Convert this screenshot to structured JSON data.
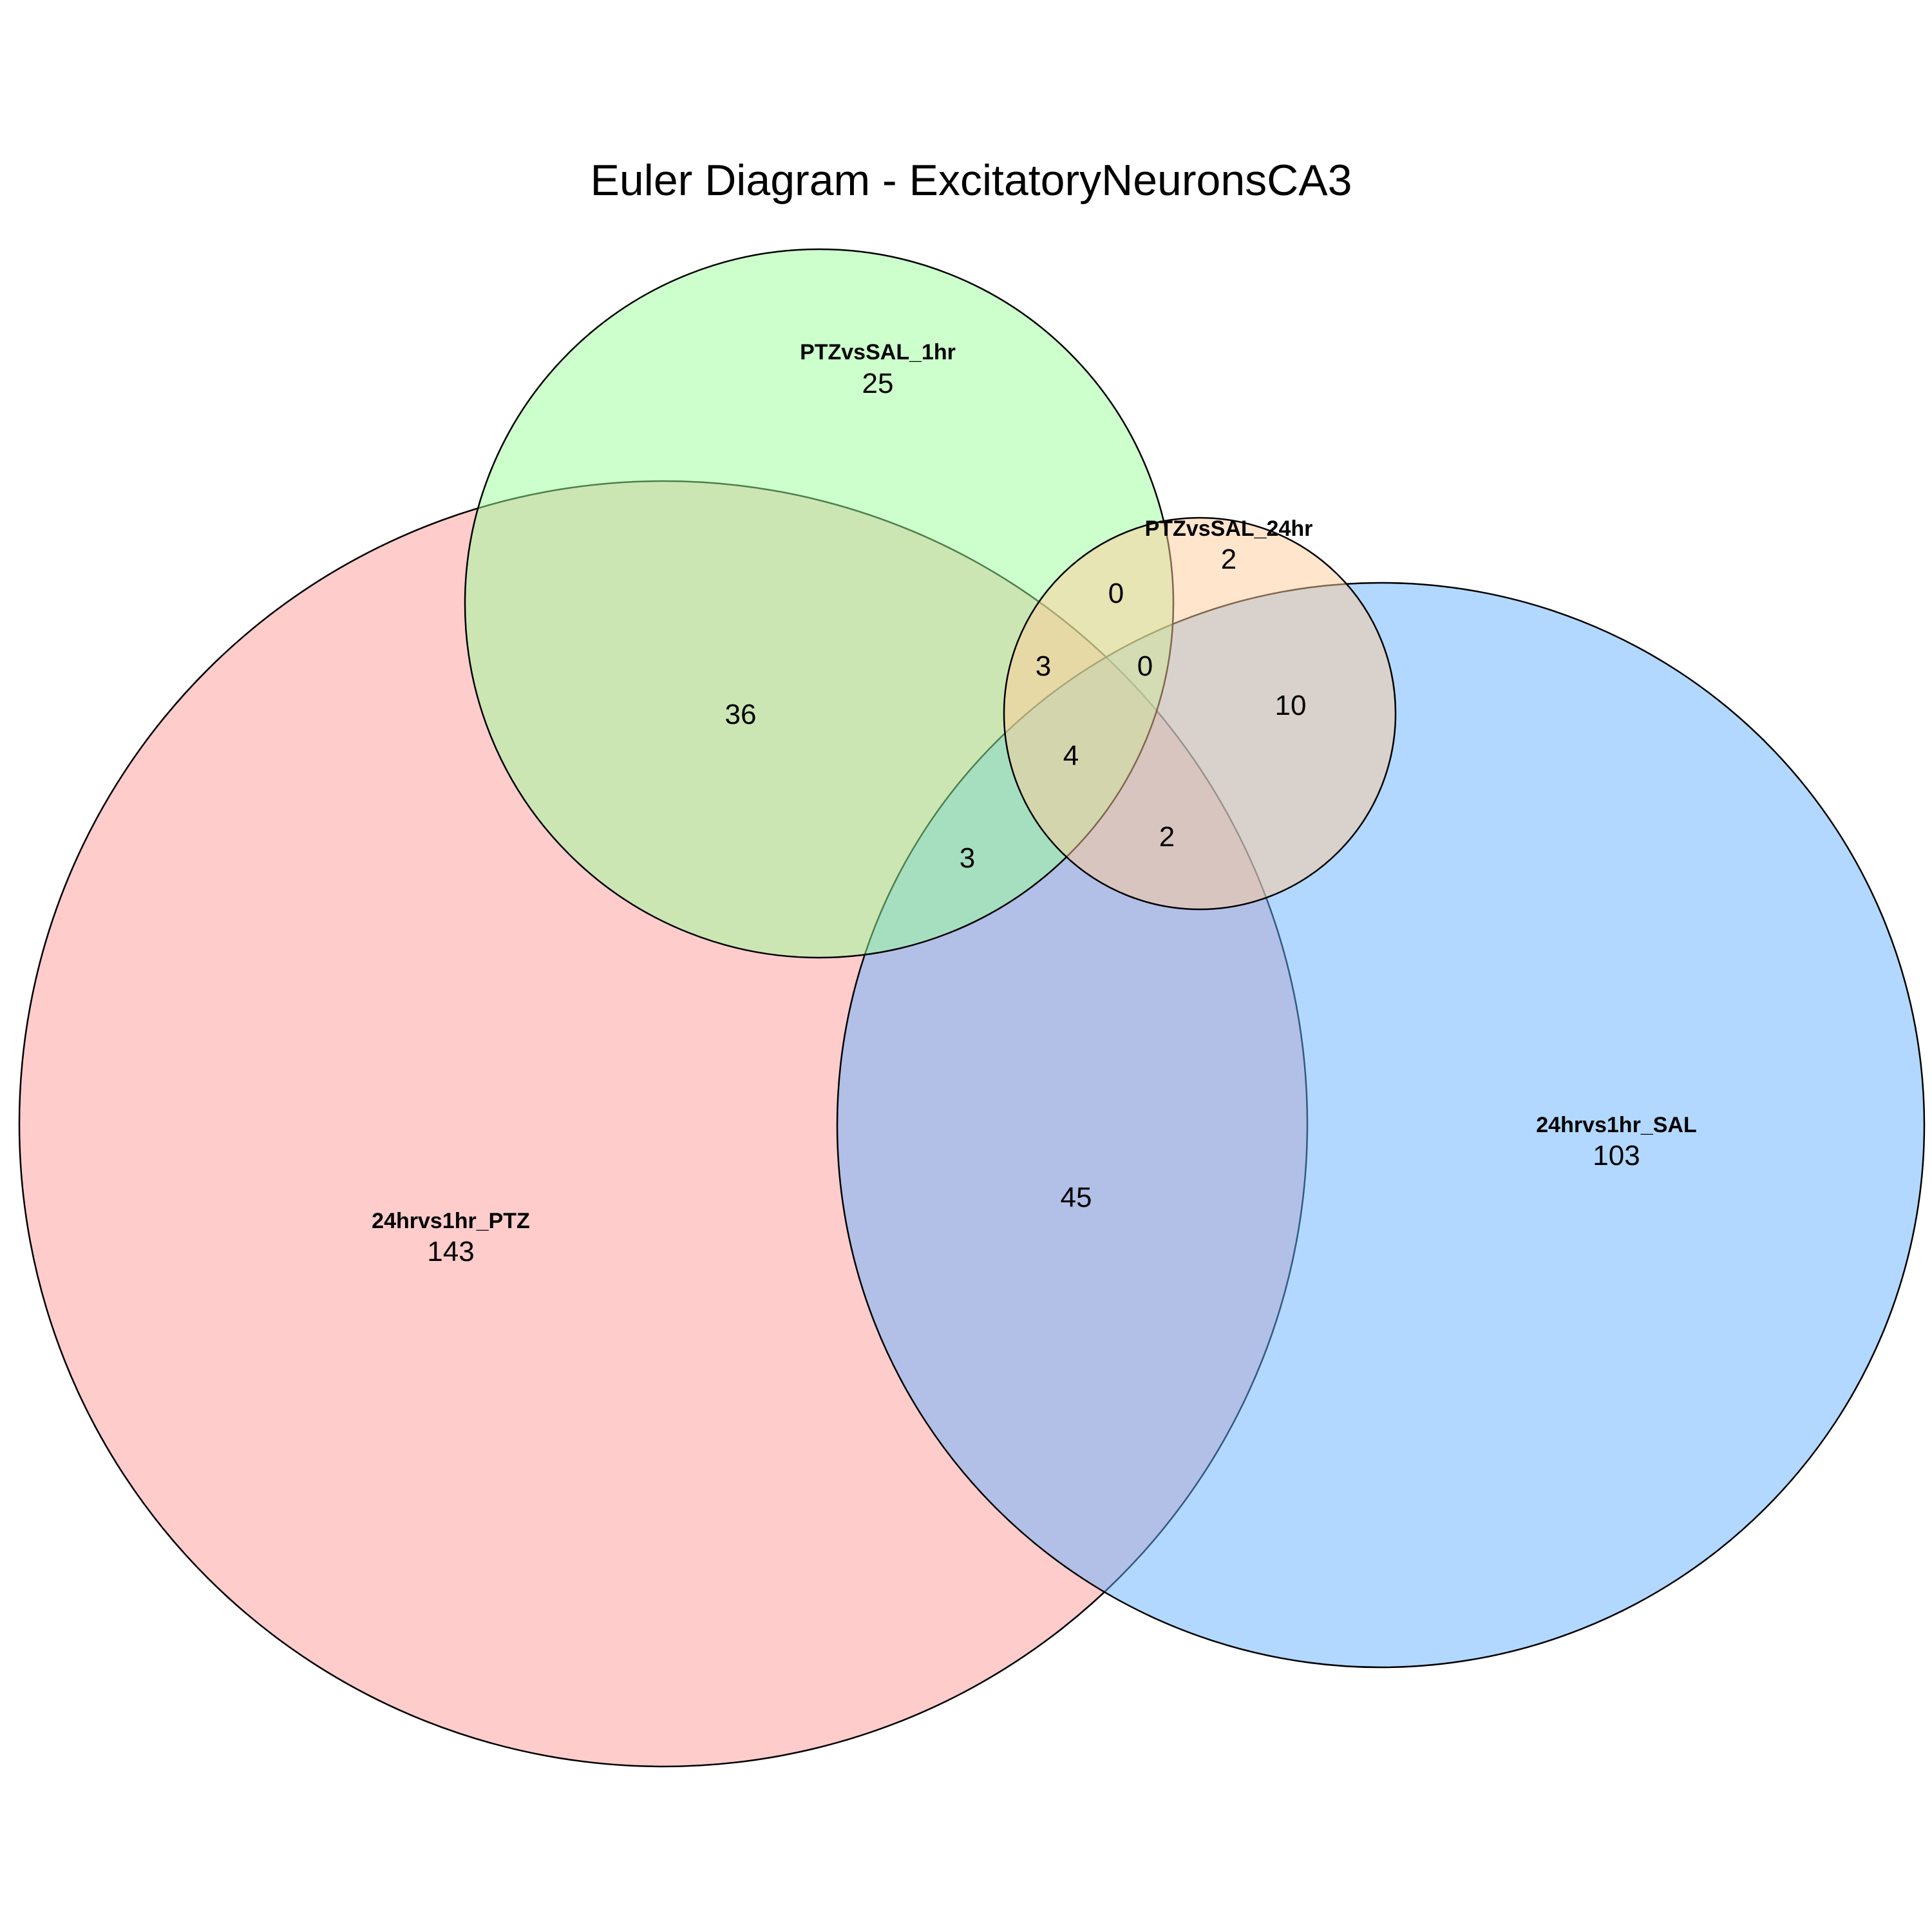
{
  "title": "Euler Diagram - ExcitatoryNeuronsCA3",
  "sets": [
    {
      "key": "ptz24",
      "name": "24hrvs1hr_PTZ",
      "color": "#FF9999",
      "only_count": "143"
    },
    {
      "key": "sal24",
      "name": "24hrvs1hr_SAL",
      "color": "#66B2FF",
      "only_count": "103"
    },
    {
      "key": "ptz1",
      "name": "PTZvsSAL_1hr",
      "color": "#99FF99",
      "only_count": "25"
    },
    {
      "key": "ptz24b",
      "name": "PTZvsSAL_24hr",
      "color": "#FFCC99",
      "only_count": "2"
    }
  ],
  "intersections": [
    {
      "sets": [
        "24hrvs1hr_PTZ",
        "PTZvsSAL_1hr"
      ],
      "count": "36"
    },
    {
      "sets": [
        "PTZvsSAL_1hr",
        "PTZvsSAL_24hr"
      ],
      "count": "0"
    },
    {
      "sets": [
        "24hrvs1hr_PTZ",
        "PTZvsSAL_1hr",
        "PTZvsSAL_24hr"
      ],
      "count": "3"
    },
    {
      "sets": [
        "PTZvsSAL_1hr",
        "PTZvsSAL_24hr",
        "24hrvs1hr_SAL"
      ],
      "count": "0"
    },
    {
      "sets": [
        "PTZvsSAL_24hr",
        "24hrvs1hr_SAL"
      ],
      "count": "10"
    },
    {
      "sets": [
        "24hrvs1hr_PTZ",
        "PTZvsSAL_1hr",
        "PTZvsSAL_24hr",
        "24hrvs1hr_SAL"
      ],
      "count": "4"
    },
    {
      "sets": [
        "24hrvs1hr_PTZ",
        "PTZvsSAL_1hr",
        "24hrvs1hr_SAL"
      ],
      "count": "3"
    },
    {
      "sets": [
        "24hrvs1hr_PTZ",
        "PTZvsSAL_24hr",
        "24hrvs1hr_SAL"
      ],
      "count": "2"
    },
    {
      "sets": [
        "24hrvs1hr_PTZ",
        "24hrvs1hr_SAL"
      ],
      "count": "45"
    }
  ]
}
